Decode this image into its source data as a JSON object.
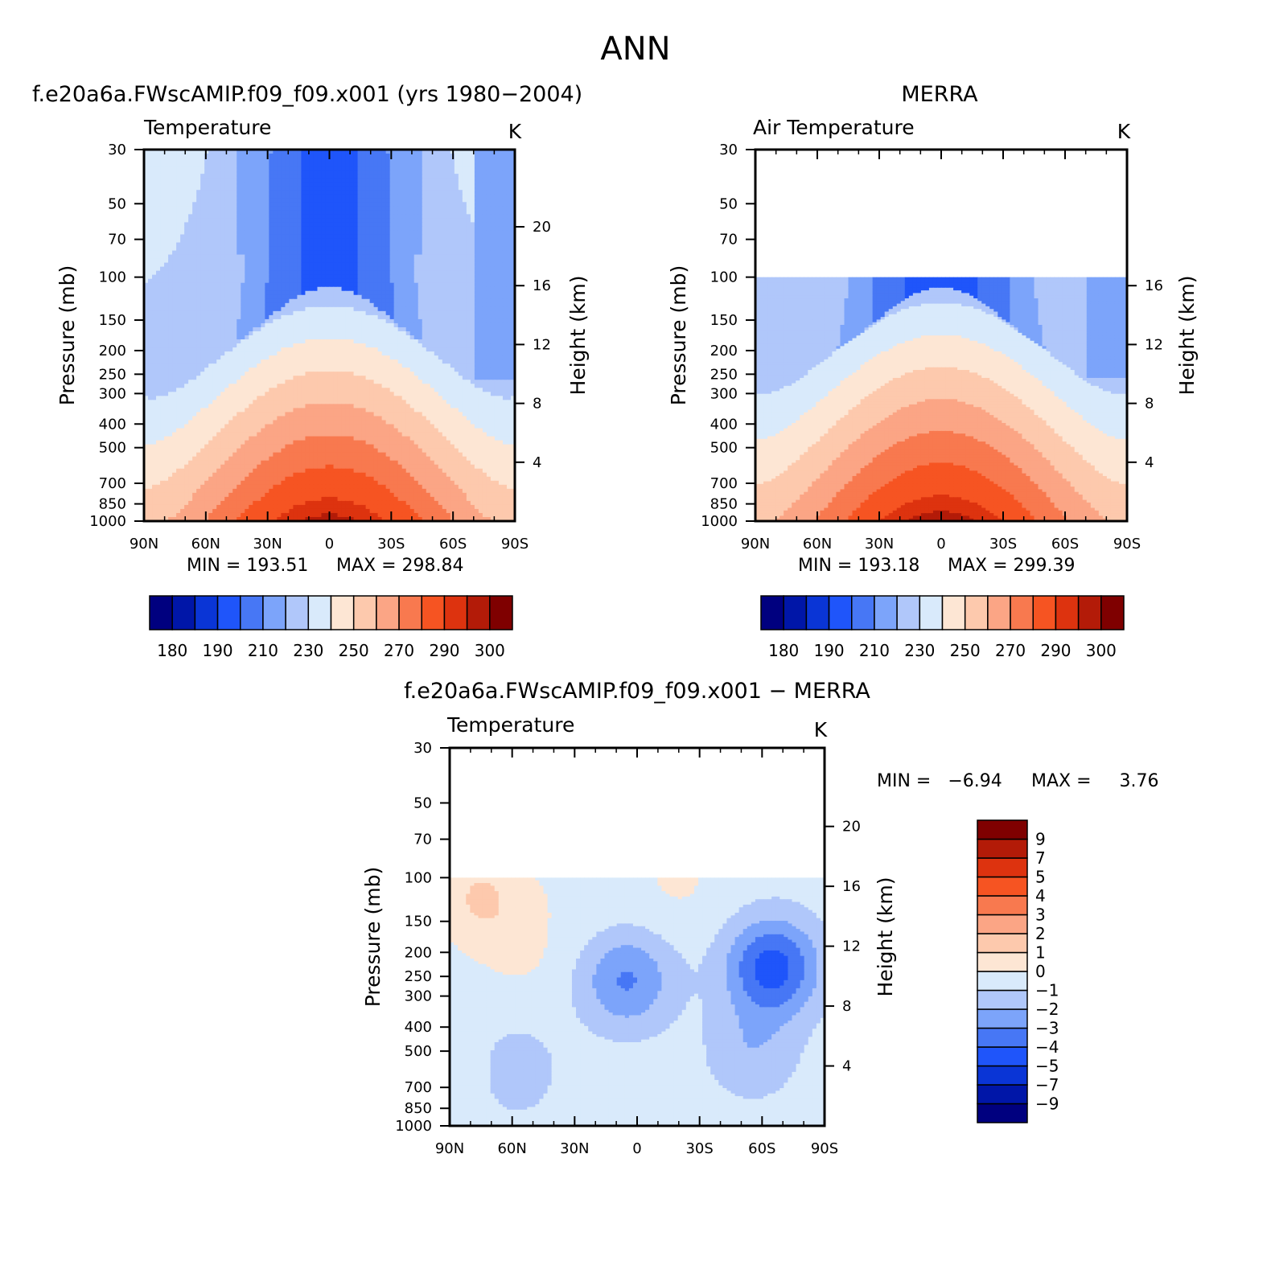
{
  "figure": {
    "title": "ANN",
    "colors": {
      "temperature_scale": [
        "#00007f",
        "#0016a8",
        "#0a35d6",
        "#1f55fa",
        "#4777f5",
        "#7ca4fa",
        "#b0c7fa",
        "#d9eafb",
        "#fde6d4",
        "#fdc9ad",
        "#fba585",
        "#f8794f",
        "#f65422",
        "#dd330f",
        "#b31b08",
        "#7f0000"
      ],
      "difference_scale": [
        "#00007f",
        "#0016a8",
        "#0a35d6",
        "#1f55fa",
        "#4777f5",
        "#7ca4fa",
        "#b0c7fa",
        "#d9eafb",
        "#fde6d4",
        "#fdc9ad",
        "#fba585",
        "#f8794f",
        "#f65422",
        "#dd330f",
        "#b31b08",
        "#7f0000"
      ]
    }
  },
  "chart_data": [
    {
      "type": "heatmap",
      "title": "f.e20a6a.FWscAMIP.f09_f09.x001 (yrs 1980−2004)",
      "field_label": "Temperature",
      "units": "K",
      "ylabel": "Pressure (mb)",
      "ylabel_right": "Height (km)",
      "y_scale": "log",
      "ylim": [
        1000,
        30
      ],
      "y_ticks": [
        "30",
        "50",
        "70",
        "100",
        "150",
        "200",
        "250",
        "300",
        "400",
        "500",
        "700",
        "850",
        "1000"
      ],
      "y_right_ticks": [
        "20",
        "16",
        "12",
        "8",
        "4"
      ],
      "x_ticks": [
        "90N",
        "60N",
        "30N",
        "0",
        "30S",
        "60S",
        "90S"
      ],
      "xlim": [
        90,
        -90
      ],
      "min_label": "MIN = 193.51",
      "max_label": "MAX = 298.84",
      "colorbar_labels": [
        "180",
        "190",
        "210",
        "230",
        "250",
        "270",
        "290",
        "300"
      ],
      "data_top_pressure": 30,
      "field": {
        "tropopause_min": 196,
        "cold_cap": 212,
        "pole_high_temp": 217,
        "pole_high_lat": 85,
        "surface_equator": 297,
        "surface_pole": 257,
        "strat_background": 219,
        "nh_warm_upper": 230
      }
    },
    {
      "type": "heatmap",
      "title": "MERRA",
      "field_label": "Air Temperature",
      "units": "K",
      "ylabel": "Pressure (mb)",
      "ylabel_right": "Height (km)",
      "y_scale": "log",
      "ylim": [
        1000,
        30
      ],
      "y_ticks": [
        "30",
        "50",
        "70",
        "100",
        "150",
        "200",
        "250",
        "300",
        "400",
        "500",
        "700",
        "850",
        "1000"
      ],
      "y_right_ticks": [
        "16",
        "12",
        "8",
        "4"
      ],
      "x_ticks": [
        "90N",
        "60N",
        "30N",
        "0",
        "30S",
        "60S",
        "90S"
      ],
      "xlim": [
        90,
        -90
      ],
      "min_label": "MIN = 193.18",
      "max_label": "MAX = 299.39",
      "colorbar_labels": [
        "180",
        "190",
        "210",
        "230",
        "250",
        "270",
        "290",
        "300"
      ],
      "data_top_pressure": 100,
      "field": {
        "tropopause_min": 194,
        "cold_cap": 207,
        "pole_high_temp": 213,
        "pole_high_lat": 85,
        "surface_equator": 298,
        "surface_pole": 258,
        "strat_background": 218,
        "nh_warm_upper": 229
      }
    },
    {
      "type": "heatmap",
      "title": "f.e20a6a.FWscAMIP.f09_f09.x001 − MERRA",
      "field_label": "Temperature",
      "units": "K",
      "ylabel": "Pressure (mb)",
      "ylabel_right": "Height (km)",
      "y_scale": "log",
      "ylim": [
        1000,
        30
      ],
      "y_ticks": [
        "30",
        "50",
        "70",
        "100",
        "150",
        "200",
        "250",
        "300",
        "400",
        "500",
        "700",
        "850",
        "1000"
      ],
      "y_right_ticks": [
        "20",
        "16",
        "12",
        "8",
        "4"
      ],
      "x_ticks": [
        "90N",
        "60N",
        "30N",
        "0",
        "30S",
        "60S",
        "90S"
      ],
      "xlim": [
        90,
        -90
      ],
      "min_label": "MIN =   −6.94",
      "max_label": "MAX =     3.76",
      "colorbar_labels": [
        "9",
        "7",
        "5",
        "4",
        "3",
        "2",
        "1",
        "0",
        "−1",
        "−2",
        "−3",
        "−4",
        "−5",
        "−7",
        "−9"
      ],
      "data_top_pressure": 100,
      "field": {
        "background": -0.5,
        "anomalies": [
          {
            "lat": 75,
            "p": 120,
            "v": 1.6
          },
          {
            "lat": 55,
            "p": 200,
            "v": 0.6
          },
          {
            "lat": 5,
            "p": 260,
            "v": -2.6
          },
          {
            "lat": -65,
            "p": 230,
            "v": -4.0
          },
          {
            "lat": -55,
            "p": 500,
            "v": -1.3
          },
          {
            "lat": 60,
            "p": 600,
            "v": -1.1
          },
          {
            "lat": 25,
            "p": 105,
            "v": 0.4
          },
          {
            "lat": -20,
            "p": 105,
            "v": 0.6
          },
          {
            "lat": 85,
            "p": 600,
            "v": 0.5
          }
        ]
      }
    }
  ]
}
